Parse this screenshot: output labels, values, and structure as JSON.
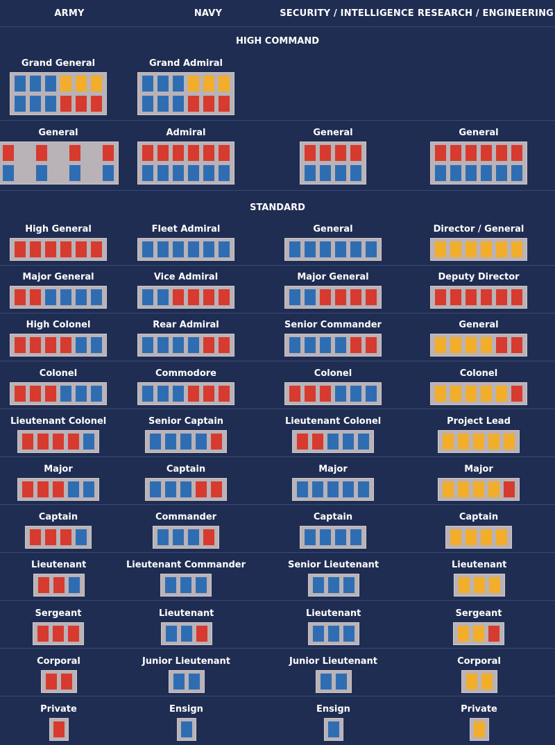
{
  "colors": {
    "background": "#1f2d52",
    "plate": "#b9b2b7",
    "red": "#d73a2e",
    "blue": "#2f6db3",
    "yellow": "#f2ad2a",
    "divider": "#3a4a74"
  },
  "columns": [
    "ARMY",
    "NAVY",
    "SECURITY / INTELLIGENCE",
    "RESEARCH / ENGINEERING"
  ],
  "sections": {
    "high_command": "HIGH COMMAND",
    "standard": "STANDARD"
  },
  "high_command": [
    {
      "army": {
        "label": "Grand General",
        "rows": [
          "bbbyyy",
          "bbbrrr"
        ]
      },
      "navy": {
        "label": "Grand Admiral",
        "rows": [
          "bbbyyy",
          "bbbrrr"
        ]
      },
      "security": null,
      "research": null
    },
    {
      "army": {
        "label": "General",
        "rows": [
          "rrrr",
          "bbbb"
        ],
        "spread": true
      },
      "navy": {
        "label": "Admiral",
        "rows": [
          "rrrrrr",
          "bbbbbb"
        ]
      },
      "security": {
        "label": "General",
        "rows": [
          "rrrr",
          "bbbb"
        ]
      },
      "research": {
        "label": "General",
        "rows": [
          "rrrrrr",
          "bbbbbb"
        ]
      }
    }
  ],
  "standard": [
    {
      "army": {
        "label": "High General",
        "rows": [
          "rrrrrr"
        ]
      },
      "navy": {
        "label": "Fleet Admiral",
        "rows": [
          "bbbbbb"
        ]
      },
      "security": {
        "label": "General",
        "rows": [
          "bbbbbb"
        ]
      },
      "research": {
        "label": "Director / General",
        "rows": [
          "yyyyyy"
        ]
      }
    },
    {
      "army": {
        "label": "Major General",
        "rows": [
          "rrbbbb"
        ]
      },
      "navy": {
        "label": "Vice Admiral",
        "rows": [
          "bbrrrr"
        ]
      },
      "security": {
        "label": "Major General",
        "rows": [
          "bbrrrr"
        ]
      },
      "research": {
        "label": "Deputy Director",
        "rows": [
          "rrrrrr"
        ]
      }
    },
    {
      "army": {
        "label": "High Colonel",
        "rows": [
          "rrrrbb"
        ]
      },
      "navy": {
        "label": "Rear Admiral",
        "rows": [
          "bbbbrr"
        ]
      },
      "security": {
        "label": "Senior Commander",
        "rows": [
          "bbbbrr"
        ]
      },
      "research": {
        "label": "General",
        "rows": [
          "yyyyrr"
        ]
      }
    },
    {
      "army": {
        "label": "Colonel",
        "rows": [
          "rrrbbb"
        ]
      },
      "navy": {
        "label": "Commodore",
        "rows": [
          "bbbrrr"
        ]
      },
      "security": {
        "label": "Colonel",
        "rows": [
          "rrrbbb"
        ]
      },
      "research": {
        "label": "Colonel",
        "rows": [
          "yyyyyr"
        ]
      }
    },
    {
      "army": {
        "label": "Lieutenant Colonel",
        "rows": [
          "rrrrb"
        ]
      },
      "navy": {
        "label": "Senior Captain",
        "rows": [
          "bbbbr"
        ]
      },
      "security": {
        "label": "Lieutenant Colonel",
        "rows": [
          "rrbbb"
        ]
      },
      "research": {
        "label": "Project Lead",
        "rows": [
          "yyyyy"
        ]
      }
    },
    {
      "army": {
        "label": "Major",
        "rows": [
          "rrrbb"
        ]
      },
      "navy": {
        "label": "Captain",
        "rows": [
          "bbbrr"
        ]
      },
      "security": {
        "label": "Major",
        "rows": [
          "bbbbb"
        ]
      },
      "research": {
        "label": "Major",
        "rows": [
          "yyyyr"
        ]
      }
    },
    {
      "army": {
        "label": "Captain",
        "rows": [
          "rrrb"
        ]
      },
      "navy": {
        "label": "Commander",
        "rows": [
          "bbbr"
        ]
      },
      "security": {
        "label": "Captain",
        "rows": [
          "bbbb"
        ]
      },
      "research": {
        "label": "Captain",
        "rows": [
          "yyyy"
        ]
      }
    },
    {
      "army": {
        "label": "Lieutenant",
        "rows": [
          "rrb"
        ]
      },
      "navy": {
        "label": "Lieutenant Commander",
        "rows": [
          "bbb"
        ]
      },
      "security": {
        "label": "Senior Lieutenant",
        "rows": [
          "bbb"
        ]
      },
      "research": {
        "label": "Lieutenant",
        "rows": [
          "yyy"
        ]
      }
    },
    {
      "army": {
        "label": "Sergeant",
        "rows": [
          "rrr"
        ]
      },
      "navy": {
        "label": "Lieutenant",
        "rows": [
          "bbr"
        ]
      },
      "security": {
        "label": "Lieutenant",
        "rows": [
          "bbb"
        ]
      },
      "research": {
        "label": "Sergeant",
        "rows": [
          "yyr"
        ]
      }
    },
    {
      "army": {
        "label": "Corporal",
        "rows": [
          "rr"
        ]
      },
      "navy": {
        "label": "Junior Lieutenant",
        "rows": [
          "bb"
        ]
      },
      "security": {
        "label": "Junior Lieutenant",
        "rows": [
          "bb"
        ]
      },
      "research": {
        "label": "Corporal",
        "rows": [
          "yy"
        ]
      }
    },
    {
      "army": {
        "label": "Private",
        "rows": [
          "r"
        ]
      },
      "navy": {
        "label": "Ensign",
        "rows": [
          "b"
        ]
      },
      "security": {
        "label": "Ensign",
        "rows": [
          "b"
        ]
      },
      "research": {
        "label": "Private",
        "rows": [
          "y"
        ]
      }
    }
  ]
}
